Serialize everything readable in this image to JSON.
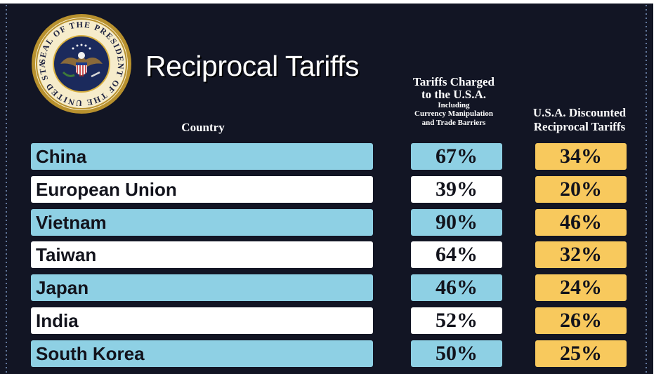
{
  "title": "Reciprocal Tariffs",
  "seal": {
    "ring_text": "SEAL OF THE PRESIDENT OF THE UNITED STATES",
    "icon": "presidential-seal-icon"
  },
  "headers": {
    "country": "Country",
    "charged_line1": "Tariffs Charged",
    "charged_line2": "to the U.S.A.",
    "charged_sub1": "Including",
    "charged_sub2": "Currency Manipulation",
    "charged_sub3": "and Trade Barriers",
    "recip_line1": "U.S.A. Discounted",
    "recip_line2": "Reciprocal Tariffs"
  },
  "colors": {
    "background": "#121524",
    "row_blue": "#8ed0e4",
    "row_white": "#ffffff",
    "recip_yellow": "#f8c95d",
    "text_dark": "#12131c"
  },
  "chart_data": {
    "type": "table",
    "title": "Reciprocal Tariffs",
    "columns": [
      "Country",
      "Tariffs Charged to the U.S.A. Including Currency Manipulation and Trade Barriers",
      "U.S.A. Discounted Reciprocal Tariffs"
    ],
    "rows": [
      {
        "country": "China",
        "charged": "67%",
        "reciprocal": "34%"
      },
      {
        "country": "European Union",
        "charged": "39%",
        "reciprocal": "20%"
      },
      {
        "country": "Vietnam",
        "charged": "90%",
        "reciprocal": "46%"
      },
      {
        "country": "Taiwan",
        "charged": "64%",
        "reciprocal": "32%"
      },
      {
        "country": "Japan",
        "charged": "46%",
        "reciprocal": "24%"
      },
      {
        "country": "India",
        "charged": "52%",
        "reciprocal": "26%"
      },
      {
        "country": "South Korea",
        "charged": "50%",
        "reciprocal": "25%"
      }
    ]
  }
}
